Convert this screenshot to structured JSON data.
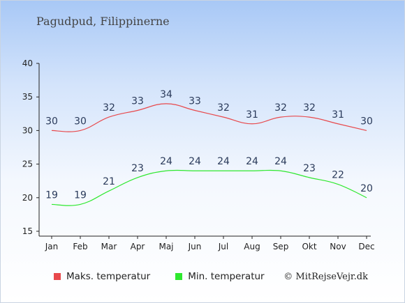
{
  "title": "Pagudpud, Filippinerne",
  "copyright": "© MitRejseVejr.dk",
  "legend": {
    "max_label": "Maks. temperatur",
    "min_label": "Min. temperatur"
  },
  "colors": {
    "max": "#e8494c",
    "min": "#2ee82e",
    "axis": "#222222"
  },
  "chart_data": {
    "type": "line",
    "categories": [
      "Jan",
      "Feb",
      "Mar",
      "Apr",
      "Maj",
      "Jun",
      "Jul",
      "Aug",
      "Sep",
      "Okt",
      "Nov",
      "Dec"
    ],
    "ylim": [
      15,
      40
    ],
    "yticks": [
      15,
      20,
      25,
      30,
      35,
      40
    ],
    "series": [
      {
        "name": "Maks. temperatur",
        "values": [
          30,
          30,
          32,
          33,
          34,
          33,
          32,
          31,
          32,
          32,
          31,
          30
        ]
      },
      {
        "name": "Min. temperatur",
        "values": [
          19,
          19,
          21,
          23,
          24,
          24,
          24,
          24,
          24,
          23,
          22,
          20
        ]
      }
    ]
  }
}
